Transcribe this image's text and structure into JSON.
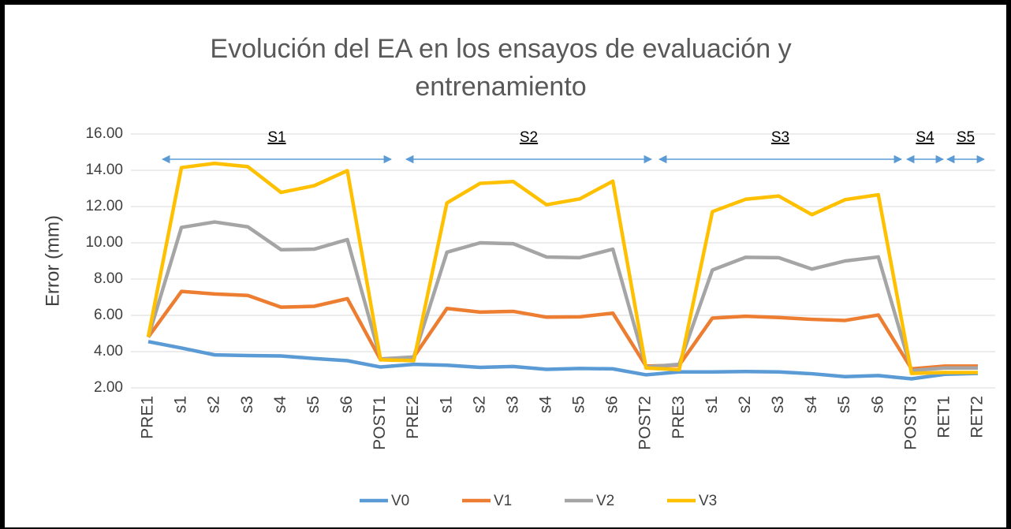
{
  "chart_data": {
    "type": "line",
    "title": "Evolución del EA en los ensayos de evaluación y entrenamiento",
    "y_label": "Error (mm)",
    "categories": [
      "PRE1",
      "s1",
      "s2",
      "s3",
      "s4",
      "s5",
      "s6",
      "POST1",
      "PRE2",
      "s1",
      "s2",
      "s3",
      "s4",
      "s5",
      "s6",
      "POST2",
      "PRE3",
      "s1",
      "s2",
      "s3",
      "s4",
      "s5",
      "s6",
      "POST3",
      "RET1",
      "RET2"
    ],
    "series": [
      {
        "name": "V0",
        "color": "#5b9bd5",
        "values": [
          4.55,
          4.2,
          3.82,
          3.78,
          3.76,
          3.62,
          3.5,
          3.15,
          3.3,
          3.25,
          3.13,
          3.18,
          3.02,
          3.07,
          3.05,
          2.72,
          2.88,
          2.88,
          2.9,
          2.88,
          2.78,
          2.62,
          2.68,
          2.5,
          2.75,
          2.8
        ]
      },
      {
        "name": "V1",
        "color": "#ed7d31",
        "values": [
          4.8,
          7.32,
          7.18,
          7.1,
          6.45,
          6.5,
          6.92,
          3.55,
          3.7,
          6.38,
          6.18,
          6.22,
          5.9,
          5.92,
          6.12,
          3.2,
          3.25,
          5.85,
          5.95,
          5.88,
          5.78,
          5.72,
          6.02,
          3.05,
          3.2,
          3.2
        ]
      },
      {
        "name": "V2",
        "color": "#a5a5a5",
        "values": [
          4.8,
          10.85,
          11.15,
          10.88,
          9.62,
          9.65,
          10.18,
          3.6,
          3.7,
          9.48,
          10.0,
          9.95,
          9.22,
          9.18,
          9.65,
          3.15,
          3.3,
          8.5,
          9.2,
          9.18,
          8.55,
          9.0,
          9.22,
          2.95,
          3.1,
          3.1
        ]
      },
      {
        "name": "V3",
        "color": "#ffc000",
        "values": [
          4.82,
          14.15,
          14.38,
          14.2,
          12.78,
          13.15,
          13.98,
          3.55,
          3.5,
          12.2,
          13.28,
          13.38,
          12.1,
          12.42,
          13.4,
          3.1,
          3.0,
          11.72,
          12.4,
          12.58,
          11.55,
          12.38,
          12.65,
          2.8,
          2.85,
          2.85
        ]
      }
    ],
    "ylim": [
      2,
      16
    ],
    "yticks": [
      {
        "value": 2,
        "label": "2.00"
      },
      {
        "value": 4,
        "label": "4.00"
      },
      {
        "value": 6,
        "label": "6.00"
      },
      {
        "value": 8,
        "label": "8.00"
      },
      {
        "value": 10,
        "label": "10.00"
      },
      {
        "value": 12,
        "label": "12.00"
      },
      {
        "value": 14,
        "label": "14.00"
      },
      {
        "value": 16,
        "label": "16.00"
      }
    ],
    "grid": true,
    "legend": "bottom",
    "annotations": [
      "S1",
      "S2",
      "S3",
      "S4",
      "S5"
    ]
  }
}
